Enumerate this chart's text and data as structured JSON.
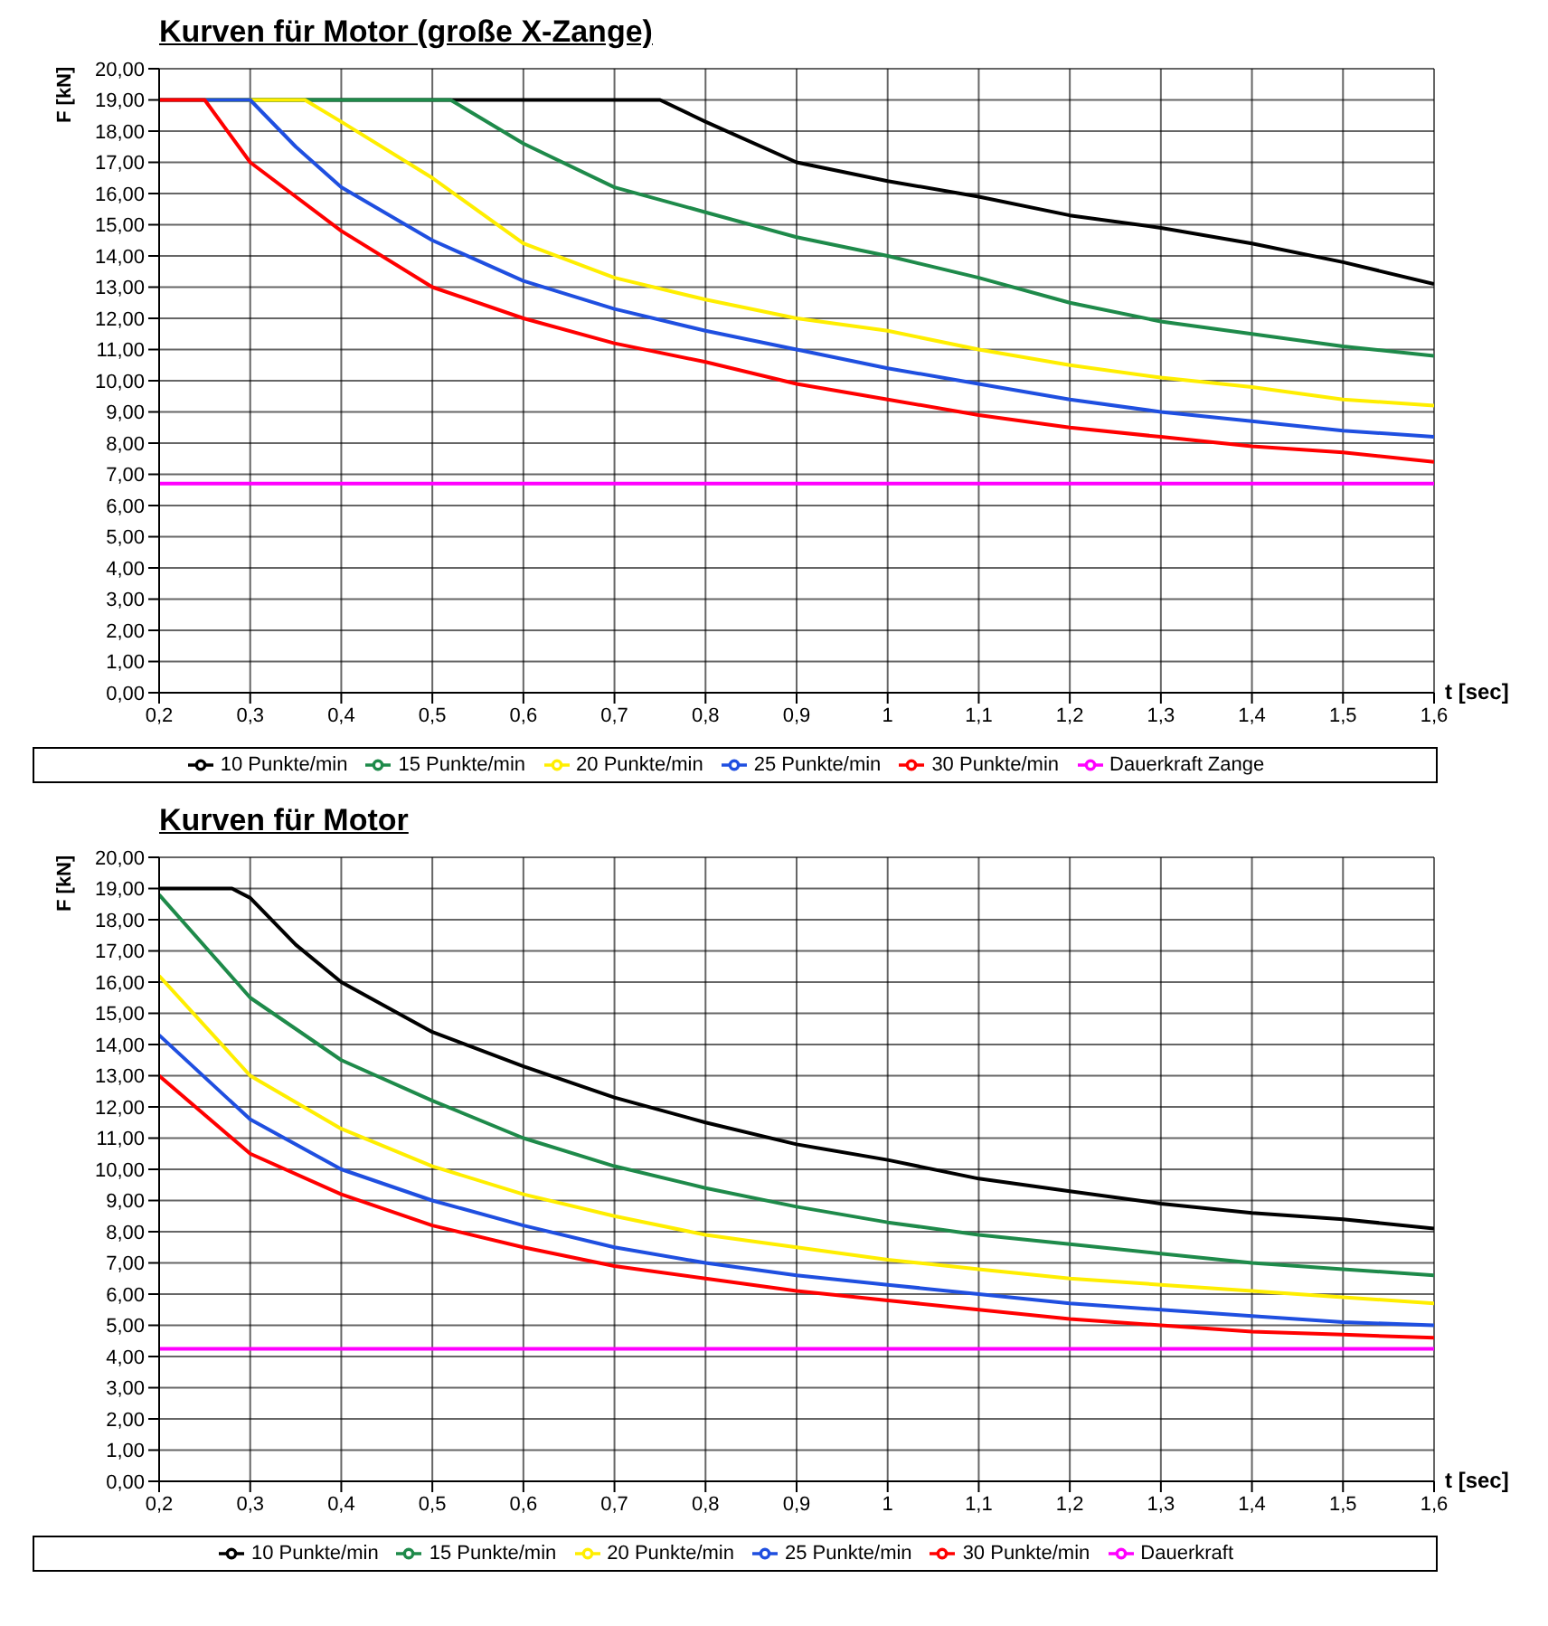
{
  "chart_data": [
    {
      "type": "line",
      "title": "Kurven für Motor (große X-Zange)",
      "xlabel": "t [sec]",
      "ylabel": "F [kN]",
      "xlim": [
        0.2,
        1.6
      ],
      "ylim": [
        0,
        20
      ],
      "xticks": [
        {
          "value": 0.2,
          "label": "0,2"
        },
        {
          "value": 0.3,
          "label": "0,3"
        },
        {
          "value": 0.4,
          "label": "0,4"
        },
        {
          "value": 0.5,
          "label": "0,5"
        },
        {
          "value": 0.6,
          "label": "0,6"
        },
        {
          "value": 0.7,
          "label": "0,7"
        },
        {
          "value": 0.8,
          "label": "0,8"
        },
        {
          "value": 0.9,
          "label": "0,9"
        },
        {
          "value": 1,
          "label": "1"
        },
        {
          "value": 1.1,
          "label": "1,1"
        },
        {
          "value": 1.2,
          "label": "1,2"
        },
        {
          "value": 1.3,
          "label": "1,3"
        },
        {
          "value": 1.4,
          "label": "1,4"
        },
        {
          "value": 1.5,
          "label": "1,5"
        },
        {
          "value": 1.6,
          "label": "1,6"
        }
      ],
      "yticks": [
        {
          "value": 0,
          "label": "0,00"
        },
        {
          "value": 1,
          "label": "1,00"
        },
        {
          "value": 2,
          "label": "2,00"
        },
        {
          "value": 3,
          "label": "3,00"
        },
        {
          "value": 4,
          "label": "4,00"
        },
        {
          "value": 5,
          "label": "5,00"
        },
        {
          "value": 6,
          "label": "6,00"
        },
        {
          "value": 7,
          "label": "7,00"
        },
        {
          "value": 8,
          "label": "8,00"
        },
        {
          "value": 9,
          "label": "9,00"
        },
        {
          "value": 10,
          "label": "10,00"
        },
        {
          "value": 11,
          "label": "11,00"
        },
        {
          "value": 12,
          "label": "12,00"
        },
        {
          "value": 13,
          "label": "13,00"
        },
        {
          "value": 14,
          "label": "14,00"
        },
        {
          "value": 15,
          "label": "15,00"
        },
        {
          "value": 16,
          "label": "16,00"
        },
        {
          "value": 17,
          "label": "17,00"
        },
        {
          "value": 18,
          "label": "18,00"
        },
        {
          "value": 19,
          "label": "19,00"
        },
        {
          "value": 20,
          "label": "20,00"
        }
      ],
      "grid": true,
      "legend": "bottom",
      "marker": "none",
      "line_style": "solid",
      "series": [
        {
          "name": "10 Punkte/min",
          "color": "#000000",
          "x": [
            0.2,
            0.75,
            0.8,
            0.9,
            1.0,
            1.1,
            1.2,
            1.3,
            1.4,
            1.5,
            1.6
          ],
          "values": [
            19,
            19,
            18.3,
            17.0,
            16.4,
            15.9,
            15.3,
            14.9,
            14.4,
            13.8,
            13.1
          ]
        },
        {
          "name": "15 Punkte/min",
          "color": "#1e8a4a",
          "x": [
            0.2,
            0.52,
            0.6,
            0.7,
            0.8,
            0.9,
            1.0,
            1.1,
            1.2,
            1.3,
            1.4,
            1.5,
            1.6
          ],
          "values": [
            19,
            19,
            17.6,
            16.2,
            15.4,
            14.6,
            14.0,
            13.3,
            12.5,
            11.9,
            11.5,
            11.1,
            10.8
          ]
        },
        {
          "name": "20 Punkte/min",
          "color": "#ffee00",
          "x": [
            0.2,
            0.36,
            0.4,
            0.5,
            0.6,
            0.7,
            0.8,
            0.9,
            1.0,
            1.1,
            1.2,
            1.3,
            1.4,
            1.5,
            1.6
          ],
          "values": [
            19,
            19,
            18.3,
            16.5,
            14.4,
            13.3,
            12.6,
            12.0,
            11.6,
            11.0,
            10.5,
            10.1,
            9.8,
            9.4,
            9.2
          ]
        },
        {
          "name": "25 Punkte/min",
          "color": "#1f4fe0",
          "x": [
            0.2,
            0.3,
            0.35,
            0.4,
            0.5,
            0.6,
            0.7,
            0.8,
            0.9,
            1.0,
            1.1,
            1.2,
            1.3,
            1.4,
            1.5,
            1.6
          ],
          "values": [
            19,
            19,
            17.5,
            16.2,
            14.5,
            13.2,
            12.3,
            11.6,
            11.0,
            10.4,
            9.9,
            9.4,
            9.0,
            8.7,
            8.4,
            8.2
          ]
        },
        {
          "name": "30 Punkte/min",
          "color": "#ff0000",
          "x": [
            0.2,
            0.25,
            0.3,
            0.4,
            0.5,
            0.6,
            0.7,
            0.8,
            0.9,
            1.0,
            1.1,
            1.2,
            1.3,
            1.4,
            1.5,
            1.6
          ],
          "values": [
            19,
            19,
            17.0,
            14.8,
            13.0,
            12.0,
            11.2,
            10.6,
            9.9,
            9.4,
            8.9,
            8.5,
            8.2,
            7.9,
            7.7,
            7.4
          ]
        },
        {
          "name": "Dauerkraft Zange",
          "color": "#ff00ff",
          "x": [
            0.2,
            1.6
          ],
          "values": [
            6.7,
            6.7
          ]
        }
      ]
    },
    {
      "type": "line",
      "title": "Kurven für Motor",
      "xlabel": "t [sec]",
      "ylabel": "F [kN]",
      "xlim": [
        0.2,
        1.6
      ],
      "ylim": [
        0,
        20
      ],
      "xticks": [
        {
          "value": 0.2,
          "label": "0,2"
        },
        {
          "value": 0.3,
          "label": "0,3"
        },
        {
          "value": 0.4,
          "label": "0,4"
        },
        {
          "value": 0.5,
          "label": "0,5"
        },
        {
          "value": 0.6,
          "label": "0,6"
        },
        {
          "value": 0.7,
          "label": "0,7"
        },
        {
          "value": 0.8,
          "label": "0,8"
        },
        {
          "value": 0.9,
          "label": "0,9"
        },
        {
          "value": 1,
          "label": "1"
        },
        {
          "value": 1.1,
          "label": "1,1"
        },
        {
          "value": 1.2,
          "label": "1,2"
        },
        {
          "value": 1.3,
          "label": "1,3"
        },
        {
          "value": 1.4,
          "label": "1,4"
        },
        {
          "value": 1.5,
          "label": "1,5"
        },
        {
          "value": 1.6,
          "label": "1,6"
        }
      ],
      "yticks": [
        {
          "value": 0,
          "label": "0,00"
        },
        {
          "value": 1,
          "label": "1,00"
        },
        {
          "value": 2,
          "label": "2,00"
        },
        {
          "value": 3,
          "label": "3,00"
        },
        {
          "value": 4,
          "label": "4,00"
        },
        {
          "value": 5,
          "label": "5,00"
        },
        {
          "value": 6,
          "label": "6,00"
        },
        {
          "value": 7,
          "label": "7,00"
        },
        {
          "value": 8,
          "label": "8,00"
        },
        {
          "value": 9,
          "label": "9,00"
        },
        {
          "value": 10,
          "label": "10,00"
        },
        {
          "value": 11,
          "label": "11,00"
        },
        {
          "value": 12,
          "label": "12,00"
        },
        {
          "value": 13,
          "label": "13,00"
        },
        {
          "value": 14,
          "label": "14,00"
        },
        {
          "value": 15,
          "label": "15,00"
        },
        {
          "value": 16,
          "label": "16,00"
        },
        {
          "value": 17,
          "label": "17,00"
        },
        {
          "value": 18,
          "label": "18,00"
        },
        {
          "value": 19,
          "label": "19,00"
        },
        {
          "value": 20,
          "label": "20,00"
        }
      ],
      "grid": true,
      "legend": "bottom",
      "marker": "none",
      "line_style": "solid",
      "series": [
        {
          "name": "10 Punkte/min",
          "color": "#000000",
          "x": [
            0.2,
            0.28,
            0.3,
            0.35,
            0.4,
            0.5,
            0.6,
            0.7,
            0.8,
            0.9,
            1.0,
            1.1,
            1.2,
            1.3,
            1.4,
            1.5,
            1.6
          ],
          "values": [
            19,
            19,
            18.7,
            17.2,
            16.0,
            14.4,
            13.3,
            12.3,
            11.5,
            10.8,
            10.3,
            9.7,
            9.3,
            8.9,
            8.6,
            8.4,
            8.1
          ]
        },
        {
          "name": "15 Punkte/min",
          "color": "#1e8a4a",
          "x": [
            0.2,
            0.3,
            0.4,
            0.5,
            0.6,
            0.7,
            0.8,
            0.9,
            1.0,
            1.1,
            1.2,
            1.3,
            1.4,
            1.5,
            1.6
          ],
          "values": [
            18.8,
            15.5,
            13.5,
            12.2,
            11.0,
            10.1,
            9.4,
            8.8,
            8.3,
            7.9,
            7.6,
            7.3,
            7.0,
            6.8,
            6.6
          ]
        },
        {
          "name": "20 Punkte/min",
          "color": "#ffee00",
          "x": [
            0.2,
            0.3,
            0.4,
            0.5,
            0.6,
            0.7,
            0.8,
            0.9,
            1.0,
            1.1,
            1.2,
            1.3,
            1.4,
            1.5,
            1.6
          ],
          "values": [
            16.2,
            13.0,
            11.3,
            10.1,
            9.2,
            8.5,
            7.9,
            7.5,
            7.1,
            6.8,
            6.5,
            6.3,
            6.1,
            5.9,
            5.7
          ]
        },
        {
          "name": "25 Punkte/min",
          "color": "#1f4fe0",
          "x": [
            0.2,
            0.3,
            0.4,
            0.5,
            0.6,
            0.7,
            0.8,
            0.9,
            1.0,
            1.1,
            1.2,
            1.3,
            1.4,
            1.5,
            1.6
          ],
          "values": [
            14.3,
            11.6,
            10.0,
            9.0,
            8.2,
            7.5,
            7.0,
            6.6,
            6.3,
            6.0,
            5.7,
            5.5,
            5.3,
            5.1,
            5.0
          ]
        },
        {
          "name": "30 Punkte/min",
          "color": "#ff0000",
          "x": [
            0.2,
            0.3,
            0.4,
            0.5,
            0.6,
            0.7,
            0.8,
            0.9,
            1.0,
            1.1,
            1.2,
            1.3,
            1.4,
            1.5,
            1.6
          ],
          "values": [
            13.0,
            10.5,
            9.2,
            8.2,
            7.5,
            6.9,
            6.5,
            6.1,
            5.8,
            5.5,
            5.2,
            5.0,
            4.8,
            4.7,
            4.6
          ]
        },
        {
          "name": "Dauerkraft",
          "color": "#ff00ff",
          "x": [
            0.2,
            1.6
          ],
          "values": [
            4.25,
            4.25
          ]
        }
      ]
    }
  ]
}
